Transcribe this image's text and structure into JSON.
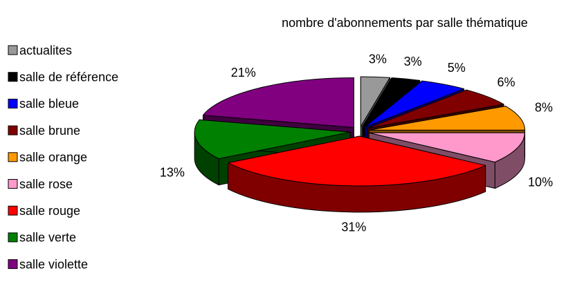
{
  "chart_data": {
    "type": "pie3d",
    "title": "nombre d'abonnements par salle thématique",
    "categories": [
      "actualites",
      "salle de référence",
      "salle bleue",
      "salle brune",
      "salle orange",
      "salle rose",
      "salle rouge",
      "salle verte",
      "salle violette"
    ],
    "values": [
      3,
      3,
      5,
      6,
      8,
      10,
      31,
      13,
      21
    ],
    "value_labels": [
      "3%",
      "3%",
      "5%",
      "6%",
      "8%",
      "10%",
      "31%",
      "13%",
      "21%"
    ],
    "colors": [
      "#999999",
      "#000000",
      "#0000ff",
      "#800000",
      "#ff9900",
      "#ff99cc",
      "#ff0000",
      "#008000",
      "#800080"
    ],
    "legend": "left"
  }
}
